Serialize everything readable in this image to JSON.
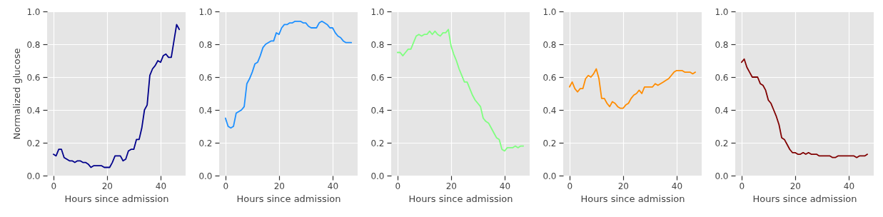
{
  "chart_data": [
    {
      "type": "line",
      "xlabel": "Hours since admission",
      "ylabel": "Normalized glucose",
      "x": [
        0,
        1,
        2,
        3,
        4,
        5,
        6,
        7,
        8,
        9,
        10,
        11,
        12,
        13,
        14,
        15,
        16,
        17,
        18,
        19,
        20,
        21,
        22,
        23,
        24,
        25,
        26,
        27,
        28,
        29,
        30,
        31,
        32,
        33,
        34,
        35,
        36,
        37,
        38,
        39,
        40,
        41,
        42,
        43,
        44,
        45,
        46,
        47
      ],
      "xlim": [
        -2.35,
        49.35
      ],
      "ylim": [
        0,
        1
      ],
      "xticks": [
        0,
        20,
        40
      ],
      "yticks": [
        {
          "value": 0,
          "label": "0.0"
        },
        {
          "value": 0.2,
          "label": "0.2"
        },
        {
          "value": 0.4,
          "label": "0.4"
        },
        {
          "value": 0.6,
          "label": "0.6"
        },
        {
          "value": 0.8,
          "label": "0.8"
        },
        {
          "value": 1,
          "label": "1.0"
        }
      ],
      "grid": true,
      "series": [
        {
          "color": "#00008b",
          "values": [
            0.13,
            0.12,
            0.16,
            0.16,
            0.11,
            0.1,
            0.09,
            0.09,
            0.08,
            0.09,
            0.09,
            0.08,
            0.08,
            0.07,
            0.05,
            0.06,
            0.06,
            0.06,
            0.06,
            0.05,
            0.05,
            0.05,
            0.08,
            0.12,
            0.12,
            0.12,
            0.09,
            0.1,
            0.15,
            0.16,
            0.16,
            0.22,
            0.22,
            0.29,
            0.4,
            0.43,
            0.61,
            0.65,
            0.67,
            0.7,
            0.69,
            0.73,
            0.74,
            0.72,
            0.72,
            0.82,
            0.92,
            0.89
          ]
        }
      ]
    },
    {
      "type": "line",
      "xlabel": "Hours since admission",
      "x": [
        0,
        1,
        2,
        3,
        4,
        5,
        6,
        7,
        8,
        9,
        10,
        11,
        12,
        13,
        14,
        15,
        16,
        17,
        18,
        19,
        20,
        21,
        22,
        23,
        24,
        25,
        26,
        27,
        28,
        29,
        30,
        31,
        32,
        33,
        34,
        35,
        36,
        37,
        38,
        39,
        40,
        41,
        42,
        43,
        44,
        45,
        46,
        47
      ],
      "xlim": [
        -2.35,
        49.35
      ],
      "ylim": [
        0,
        1
      ],
      "xticks": [
        0,
        20,
        40
      ],
      "yticks": [
        {
          "value": 0,
          "label": "0.0"
        },
        {
          "value": 0.2,
          "label": "0.2"
        },
        {
          "value": 0.4,
          "label": "0.4"
        },
        {
          "value": 0.6,
          "label": "0.6"
        },
        {
          "value": 0.8,
          "label": "0.8"
        },
        {
          "value": 1,
          "label": "1.0"
        }
      ],
      "grid": true,
      "series": [
        {
          "color": "#1e90ff",
          "values": [
            0.35,
            0.3,
            0.29,
            0.3,
            0.38,
            0.39,
            0.4,
            0.42,
            0.56,
            0.59,
            0.63,
            0.68,
            0.69,
            0.73,
            0.78,
            0.8,
            0.81,
            0.82,
            0.82,
            0.87,
            0.86,
            0.9,
            0.92,
            0.92,
            0.93,
            0.93,
            0.94,
            0.94,
            0.94,
            0.93,
            0.93,
            0.91,
            0.9,
            0.9,
            0.9,
            0.93,
            0.94,
            0.93,
            0.92,
            0.9,
            0.9,
            0.87,
            0.85,
            0.84,
            0.82,
            0.81,
            0.81,
            0.81
          ]
        }
      ]
    },
    {
      "type": "line",
      "xlabel": "Hours since admission",
      "x": [
        0,
        1,
        2,
        3,
        4,
        5,
        6,
        7,
        8,
        9,
        10,
        11,
        12,
        13,
        14,
        15,
        16,
        17,
        18,
        19,
        20,
        21,
        22,
        23,
        24,
        25,
        26,
        27,
        28,
        29,
        30,
        31,
        32,
        33,
        34,
        35,
        36,
        37,
        38,
        39,
        40,
        41,
        42,
        43,
        44,
        45,
        46,
        47
      ],
      "xlim": [
        -2.35,
        49.35
      ],
      "ylim": [
        0,
        1
      ],
      "xticks": [
        0,
        20,
        40
      ],
      "yticks": [
        {
          "value": 0,
          "label": "0.0"
        },
        {
          "value": 0.2,
          "label": "0.2"
        },
        {
          "value": 0.4,
          "label": "0.4"
        },
        {
          "value": 0.6,
          "label": "0.6"
        },
        {
          "value": 0.8,
          "label": "0.8"
        },
        {
          "value": 1,
          "label": "1.0"
        }
      ],
      "grid": true,
      "series": [
        {
          "color": "#7fff7f",
          "values": [
            0.75,
            0.75,
            0.73,
            0.75,
            0.77,
            0.77,
            0.81,
            0.85,
            0.86,
            0.85,
            0.86,
            0.86,
            0.88,
            0.86,
            0.88,
            0.86,
            0.85,
            0.87,
            0.87,
            0.89,
            0.79,
            0.74,
            0.7,
            0.65,
            0.61,
            0.57,
            0.57,
            0.53,
            0.49,
            0.46,
            0.44,
            0.42,
            0.35,
            0.33,
            0.32,
            0.29,
            0.26,
            0.23,
            0.22,
            0.16,
            0.15,
            0.17,
            0.17,
            0.17,
            0.18,
            0.17,
            0.18,
            0.18
          ]
        }
      ]
    },
    {
      "type": "line",
      "xlabel": "Hours since admission",
      "x": [
        0,
        1,
        2,
        3,
        4,
        5,
        6,
        7,
        8,
        9,
        10,
        11,
        12,
        13,
        14,
        15,
        16,
        17,
        18,
        19,
        20,
        21,
        22,
        23,
        24,
        25,
        26,
        27,
        28,
        29,
        30,
        31,
        32,
        33,
        34,
        35,
        36,
        37,
        38,
        39,
        40,
        41,
        42,
        43,
        44,
        45,
        46,
        47
      ],
      "xlim": [
        -2.35,
        49.35
      ],
      "ylim": [
        0,
        1
      ],
      "xticks": [
        0,
        20,
        40
      ],
      "yticks": [
        {
          "value": 0,
          "label": "0.0"
        },
        {
          "value": 0.2,
          "label": "0.2"
        },
        {
          "value": 0.4,
          "label": "0.4"
        },
        {
          "value": 0.6,
          "label": "0.6"
        },
        {
          "value": 0.8,
          "label": "0.8"
        },
        {
          "value": 1,
          "label": "1.0"
        }
      ],
      "grid": true,
      "series": [
        {
          "color": "#ff8c00",
          "values": [
            0.54,
            0.57,
            0.53,
            0.51,
            0.53,
            0.53,
            0.59,
            0.61,
            0.6,
            0.62,
            0.65,
            0.59,
            0.47,
            0.47,
            0.44,
            0.42,
            0.45,
            0.44,
            0.42,
            0.41,
            0.41,
            0.43,
            0.44,
            0.47,
            0.49,
            0.5,
            0.52,
            0.5,
            0.54,
            0.54,
            0.54,
            0.54,
            0.56,
            0.55,
            0.56,
            0.57,
            0.58,
            0.59,
            0.61,
            0.63,
            0.64,
            0.64,
            0.64,
            0.63,
            0.63,
            0.63,
            0.62,
            0.63
          ]
        }
      ]
    },
    {
      "type": "line",
      "xlabel": "Hours since admission",
      "x": [
        0,
        1,
        2,
        3,
        4,
        5,
        6,
        7,
        8,
        9,
        10,
        11,
        12,
        13,
        14,
        15,
        16,
        17,
        18,
        19,
        20,
        21,
        22,
        23,
        24,
        25,
        26,
        27,
        28,
        29,
        30,
        31,
        32,
        33,
        34,
        35,
        36,
        37,
        38,
        39,
        40,
        41,
        42,
        43,
        44,
        45,
        46,
        47
      ],
      "xlim": [
        -2.35,
        49.35
      ],
      "ylim": [
        0,
        1
      ],
      "xticks": [
        0,
        20,
        40
      ],
      "yticks": [
        {
          "value": 0,
          "label": "0.0"
        },
        {
          "value": 0.2,
          "label": "0.2"
        },
        {
          "value": 0.4,
          "label": "0.4"
        },
        {
          "value": 0.6,
          "label": "0.6"
        },
        {
          "value": 0.8,
          "label": "0.8"
        },
        {
          "value": 1,
          "label": "1.0"
        }
      ],
      "grid": true,
      "series": [
        {
          "color": "#800000",
          "values": [
            0.69,
            0.71,
            0.66,
            0.63,
            0.6,
            0.6,
            0.6,
            0.56,
            0.55,
            0.52,
            0.46,
            0.44,
            0.4,
            0.36,
            0.31,
            0.23,
            0.22,
            0.19,
            0.16,
            0.14,
            0.14,
            0.13,
            0.13,
            0.14,
            0.13,
            0.14,
            0.13,
            0.13,
            0.13,
            0.12,
            0.12,
            0.12,
            0.12,
            0.12,
            0.11,
            0.11,
            0.12,
            0.12,
            0.12,
            0.12,
            0.12,
            0.12,
            0.12,
            0.11,
            0.12,
            0.12,
            0.12,
            0.13
          ]
        }
      ]
    }
  ]
}
